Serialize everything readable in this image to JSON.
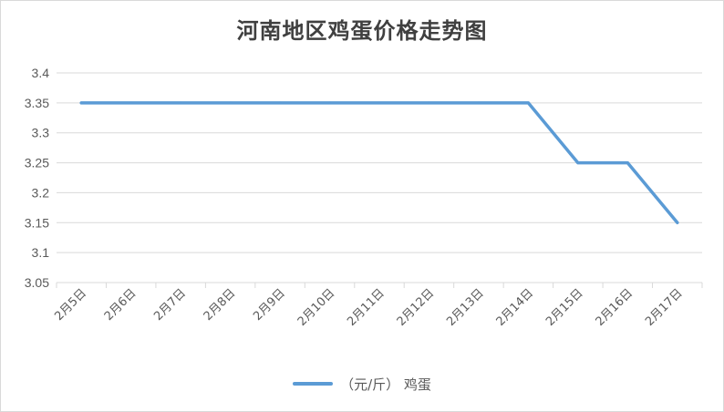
{
  "colors": {
    "series": "#5b9bd5",
    "grid": "#d9d9d9",
    "text": "#595959"
  },
  "chart_data": {
    "type": "line",
    "title": "河南地区鸡蛋价格走势图",
    "categories": [
      "2月5日",
      "2月6日",
      "2月7日",
      "2月8日",
      "2月9日",
      "2月10日",
      "2月11日",
      "2月12日",
      "2月13日",
      "2月14日",
      "2月15日",
      "2月16日",
      "2月17日"
    ],
    "series": [
      {
        "name": "（元/斤） 鸡蛋",
        "values": [
          3.35,
          3.35,
          3.35,
          3.35,
          3.35,
          3.35,
          3.35,
          3.35,
          3.35,
          3.35,
          3.25,
          3.25,
          3.15
        ]
      }
    ],
    "yticks": [
      "3.4",
      "3.35",
      "3.3",
      "3.25",
      "3.2",
      "3.15",
      "3.1",
      "3.05"
    ],
    "ylim": [
      3.05,
      3.4
    ],
    "xlabel": "",
    "ylabel": "",
    "grid": true,
    "legend": "bottom"
  }
}
